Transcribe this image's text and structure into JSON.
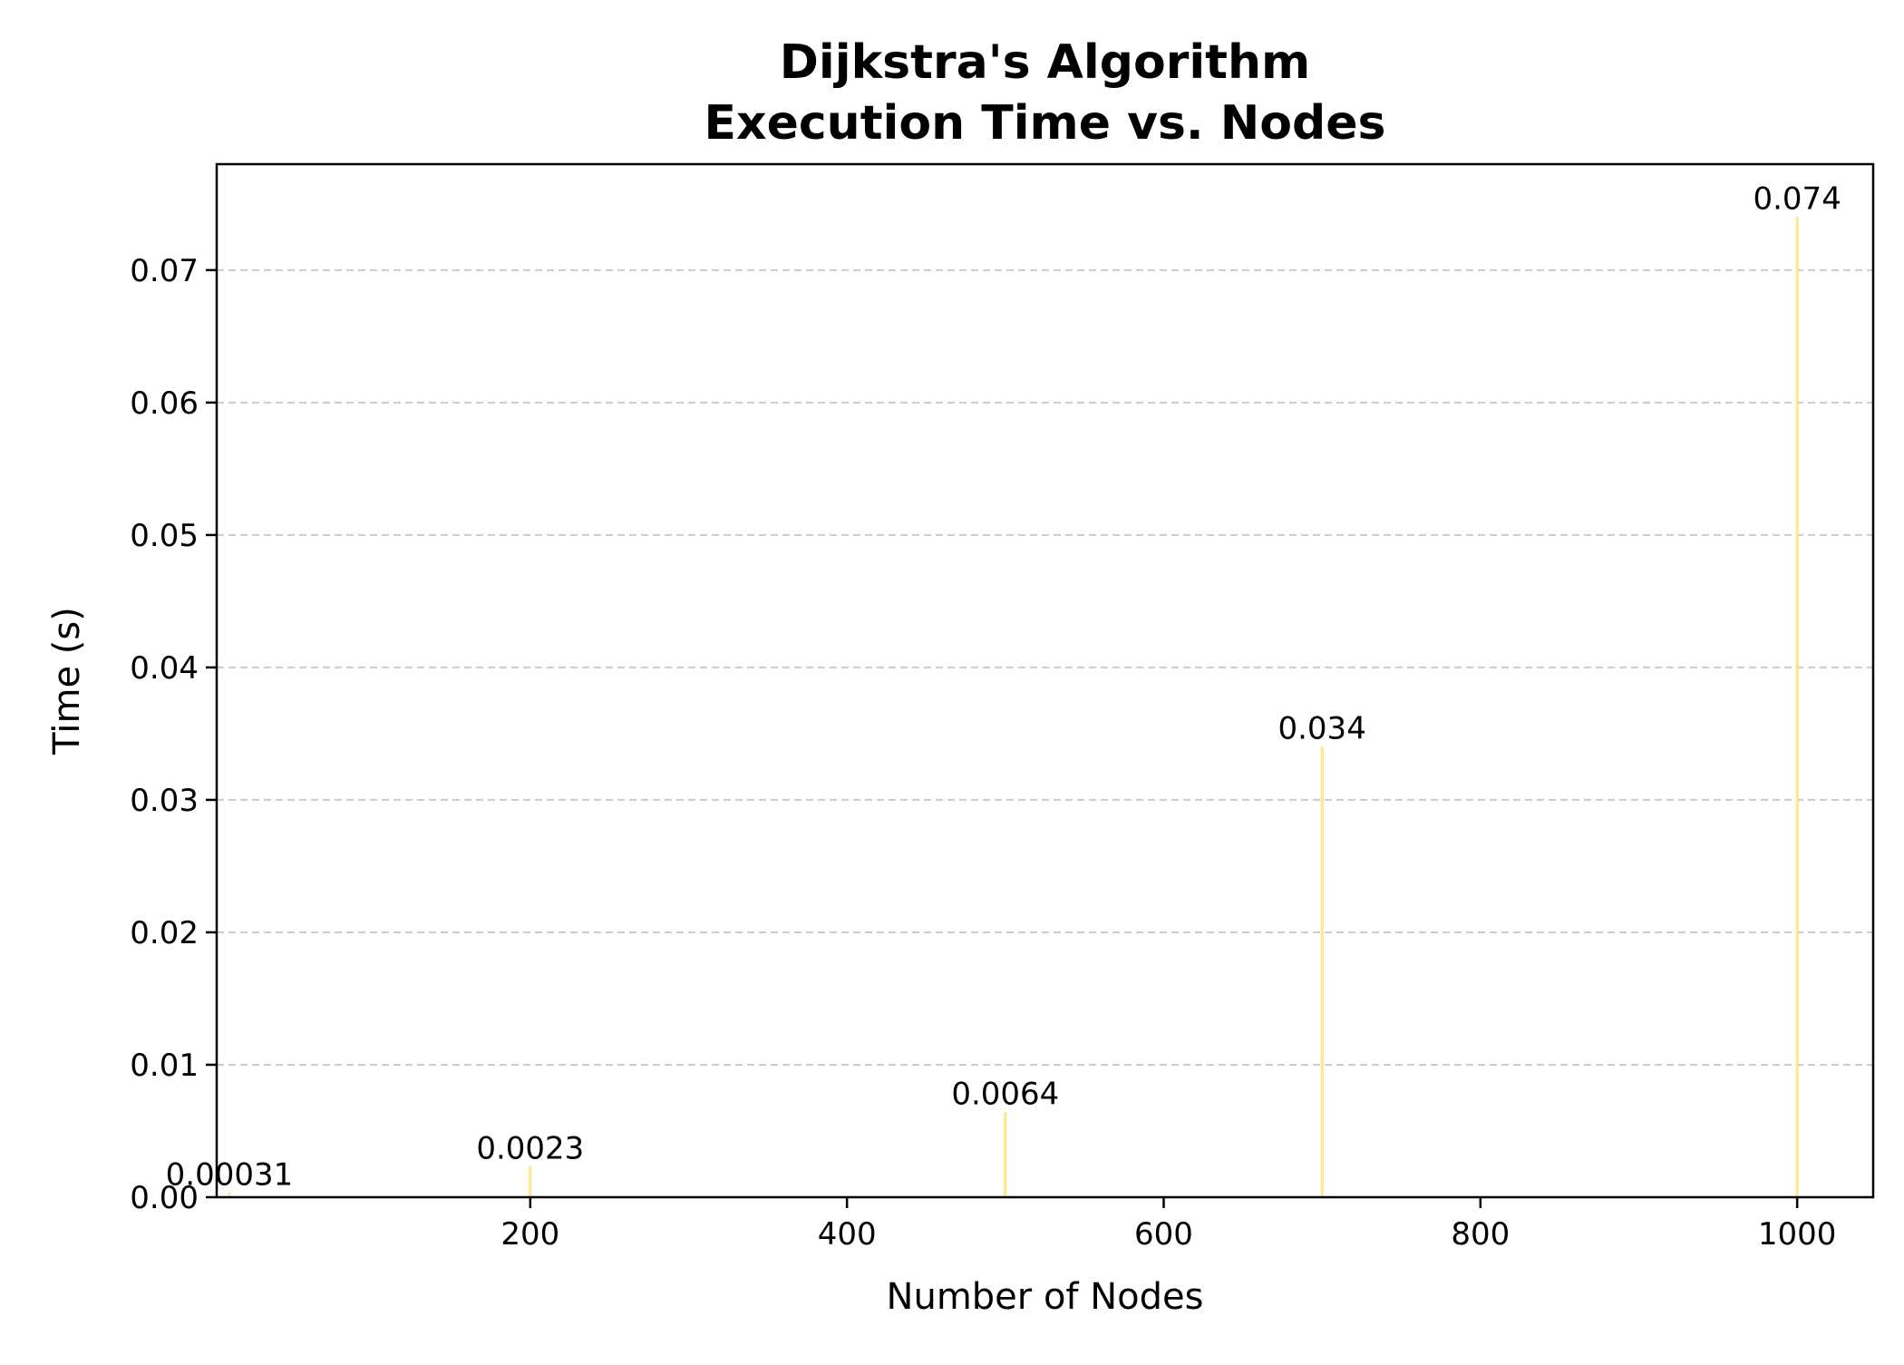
{
  "chart_data": {
    "type": "bar",
    "title": [
      "Dijkstra's Algorithm",
      "Execution Time vs. Nodes"
    ],
    "xlabel": "Number of Nodes",
    "ylabel": "Time (s)",
    "x": [
      10,
      200,
      500,
      700,
      1000
    ],
    "values": [
      0.00031,
      0.0023,
      0.0064,
      0.034,
      0.074
    ],
    "value_labels": [
      "0.00031",
      "0.0023",
      "0.0064",
      "0.034",
      "0.074"
    ],
    "xlim": [
      2,
      1048
    ],
    "ylim": [
      0,
      0.078
    ],
    "xticks": [
      200,
      400,
      600,
      800,
      1000
    ],
    "xtick_labels": [
      "200",
      "400",
      "600",
      "800",
      "1000"
    ],
    "yticks": [
      0,
      0.01,
      0.02,
      0.03,
      0.04,
      0.05,
      0.06,
      0.07
    ],
    "ytick_labels": [
      "0.00",
      "0.01",
      "0.02",
      "0.03",
      "0.04",
      "0.05",
      "0.06",
      "0.07"
    ],
    "grid": "y-dashed",
    "bar_color": "#fff2a8",
    "bar_edge_color": "#f5d547",
    "grid_color": "#cccccc"
  }
}
